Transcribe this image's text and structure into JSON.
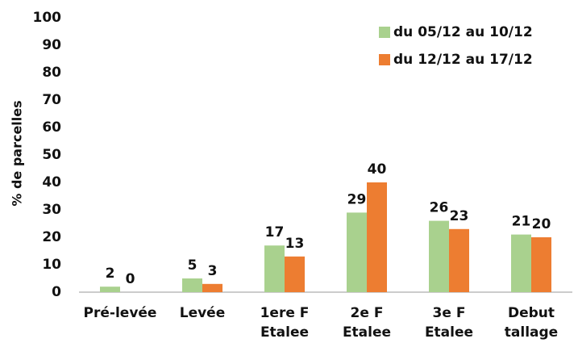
{
  "chart_data": {
    "type": "bar",
    "y_label": "% de parcelles",
    "categories": [
      "Pré-levée",
      "Levée",
      "1ere F\nEtalee",
      "2e F\nEtalee",
      "3e F\nEtalee",
      "Debut\ntallage"
    ],
    "series": [
      {
        "name": "du 05/12 au 10/12",
        "color": "#a9d18e",
        "values": [
          2,
          5,
          17,
          29,
          26,
          21
        ]
      },
      {
        "name": "du 12/12 au 17/12",
        "color": "#ed7d31",
        "values": [
          0,
          3,
          13,
          40,
          23,
          20
        ]
      }
    ],
    "ylim": [
      0,
      100
    ],
    "yticks": [
      0,
      10,
      20,
      30,
      40,
      50,
      60,
      70,
      80,
      90,
      100
    ],
    "grid": false,
    "legend": "top-right"
  }
}
